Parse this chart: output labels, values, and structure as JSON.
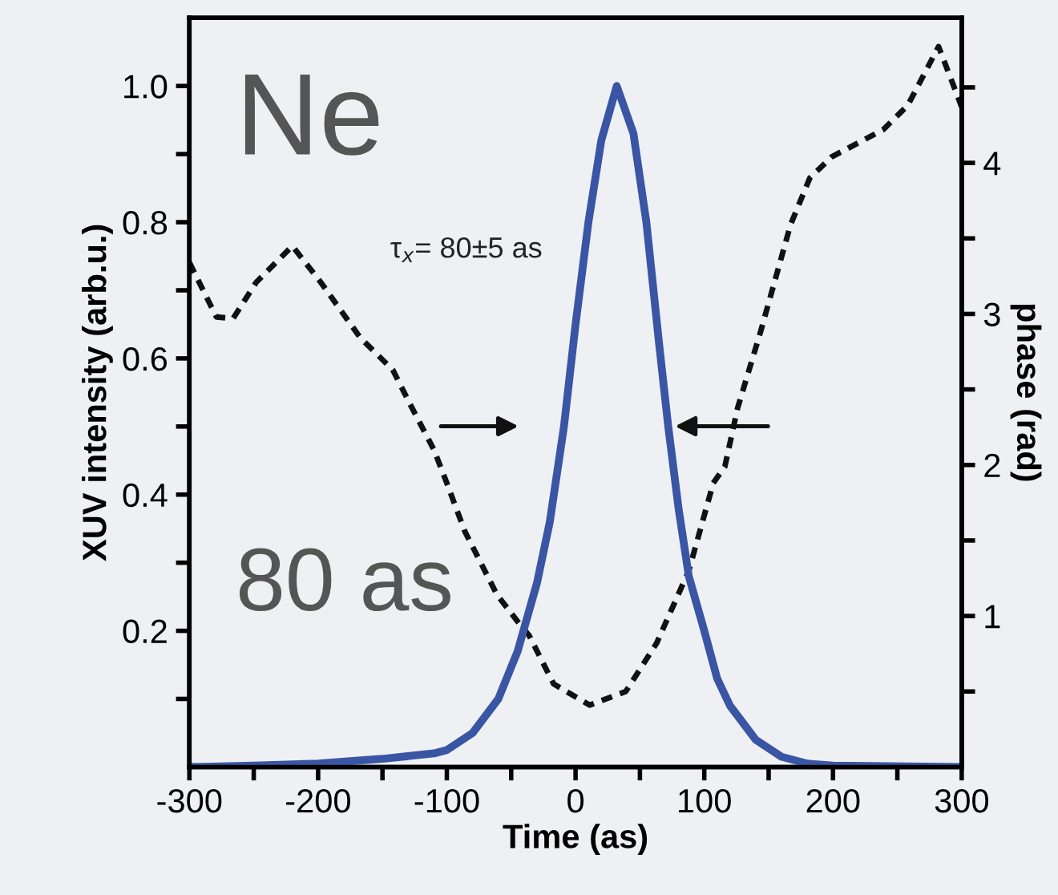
{
  "chart_data": {
    "type": "line",
    "xlabel": "Time (as)",
    "ylabel": "XUV intensity (arb.u.)",
    "y2label": "phase (rad)",
    "annotations": [
      "Ne",
      "80 as",
      "τ$_{x}$= 80±5 as"
    ],
    "xlim": [
      -300,
      300
    ],
    "xticks": [
      -300,
      {
        "value": -250,
        "label": null
      },
      -200,
      {
        "value": -150,
        "label": null
      },
      -100,
      {
        "value": -50,
        "label": null
      },
      0,
      {
        "value": 50,
        "label": null
      },
      100,
      {
        "value": 150,
        "label": null
      },
      200,
      {
        "value": 250,
        "label": null
      },
      300
    ],
    "ylim": [
      0,
      1.1
    ],
    "yticks": [
      {
        "value": 0.1,
        "label": null
      },
      0.2,
      {
        "value": 0.3,
        "label": null
      },
      0.4,
      {
        "value": 0.5,
        "label": null
      },
      0.6,
      {
        "value": 0.7,
        "label": null
      },
      0.8,
      {
        "value": 0.9,
        "label": null
      },
      {
        "value": 1.0,
        "label": "1.0"
      }
    ],
    "y2lim": [
      0,
      4.96
    ],
    "y2ticks": [
      {
        "value": 0.5,
        "label": null
      },
      1,
      {
        "value": 1.5,
        "label": null
      },
      2,
      {
        "value": 2.5,
        "label": null
      },
      3,
      {
        "value": 3.5,
        "label": null
      },
      4,
      {
        "value": 4.5,
        "label": null
      }
    ],
    "grid": false,
    "legend": false,
    "series": [
      {
        "color": "#3a55a4",
        "line_style": "solid",
        "x": [
          -300,
          -250,
          -200,
          -150,
          -110,
          -100,
          -80,
          -60,
          -45,
          -30,
          -20,
          -9,
          0,
          10,
          20,
          32,
          45,
          55,
          65,
          72,
          80,
          88,
          100,
          110,
          120,
          140,
          160,
          180,
          200,
          300
        ],
        "values": [
          0,
          0.002,
          0.005,
          0.012,
          0.02,
          0.025,
          0.05,
          0.1,
          0.17,
          0.27,
          0.36,
          0.5,
          0.65,
          0.8,
          0.92,
          1.0,
          0.93,
          0.8,
          0.62,
          0.5,
          0.38,
          0.28,
          0.2,
          0.13,
          0.09,
          0.04,
          0.015,
          0.005,
          0.002,
          0
        ]
      },
      {
        "color": "#111111",
        "line_style": "dashed",
        "axis": "y2",
        "x": [
          -300,
          -279,
          -266,
          -248,
          -220,
          -198,
          -167,
          -142,
          -129,
          -110,
          -100,
          -86,
          -61,
          -42,
          -36,
          -17,
          11,
          39,
          63,
          88,
          107,
          116,
          126,
          144,
          167,
          182,
          199,
          239,
          258,
          282,
          300
        ],
        "values": [
          3.34,
          2.98,
          2.97,
          3.21,
          3.45,
          3.21,
          2.84,
          2.63,
          2.41,
          2.1,
          1.88,
          1.56,
          1.14,
          0.93,
          0.87,
          0.55,
          0.41,
          0.5,
          0.82,
          1.3,
          1.88,
          1.99,
          2.38,
          2.89,
          3.59,
          3.9,
          4.04,
          4.22,
          4.38,
          4.77,
          4.37
        ]
      }
    ]
  }
}
